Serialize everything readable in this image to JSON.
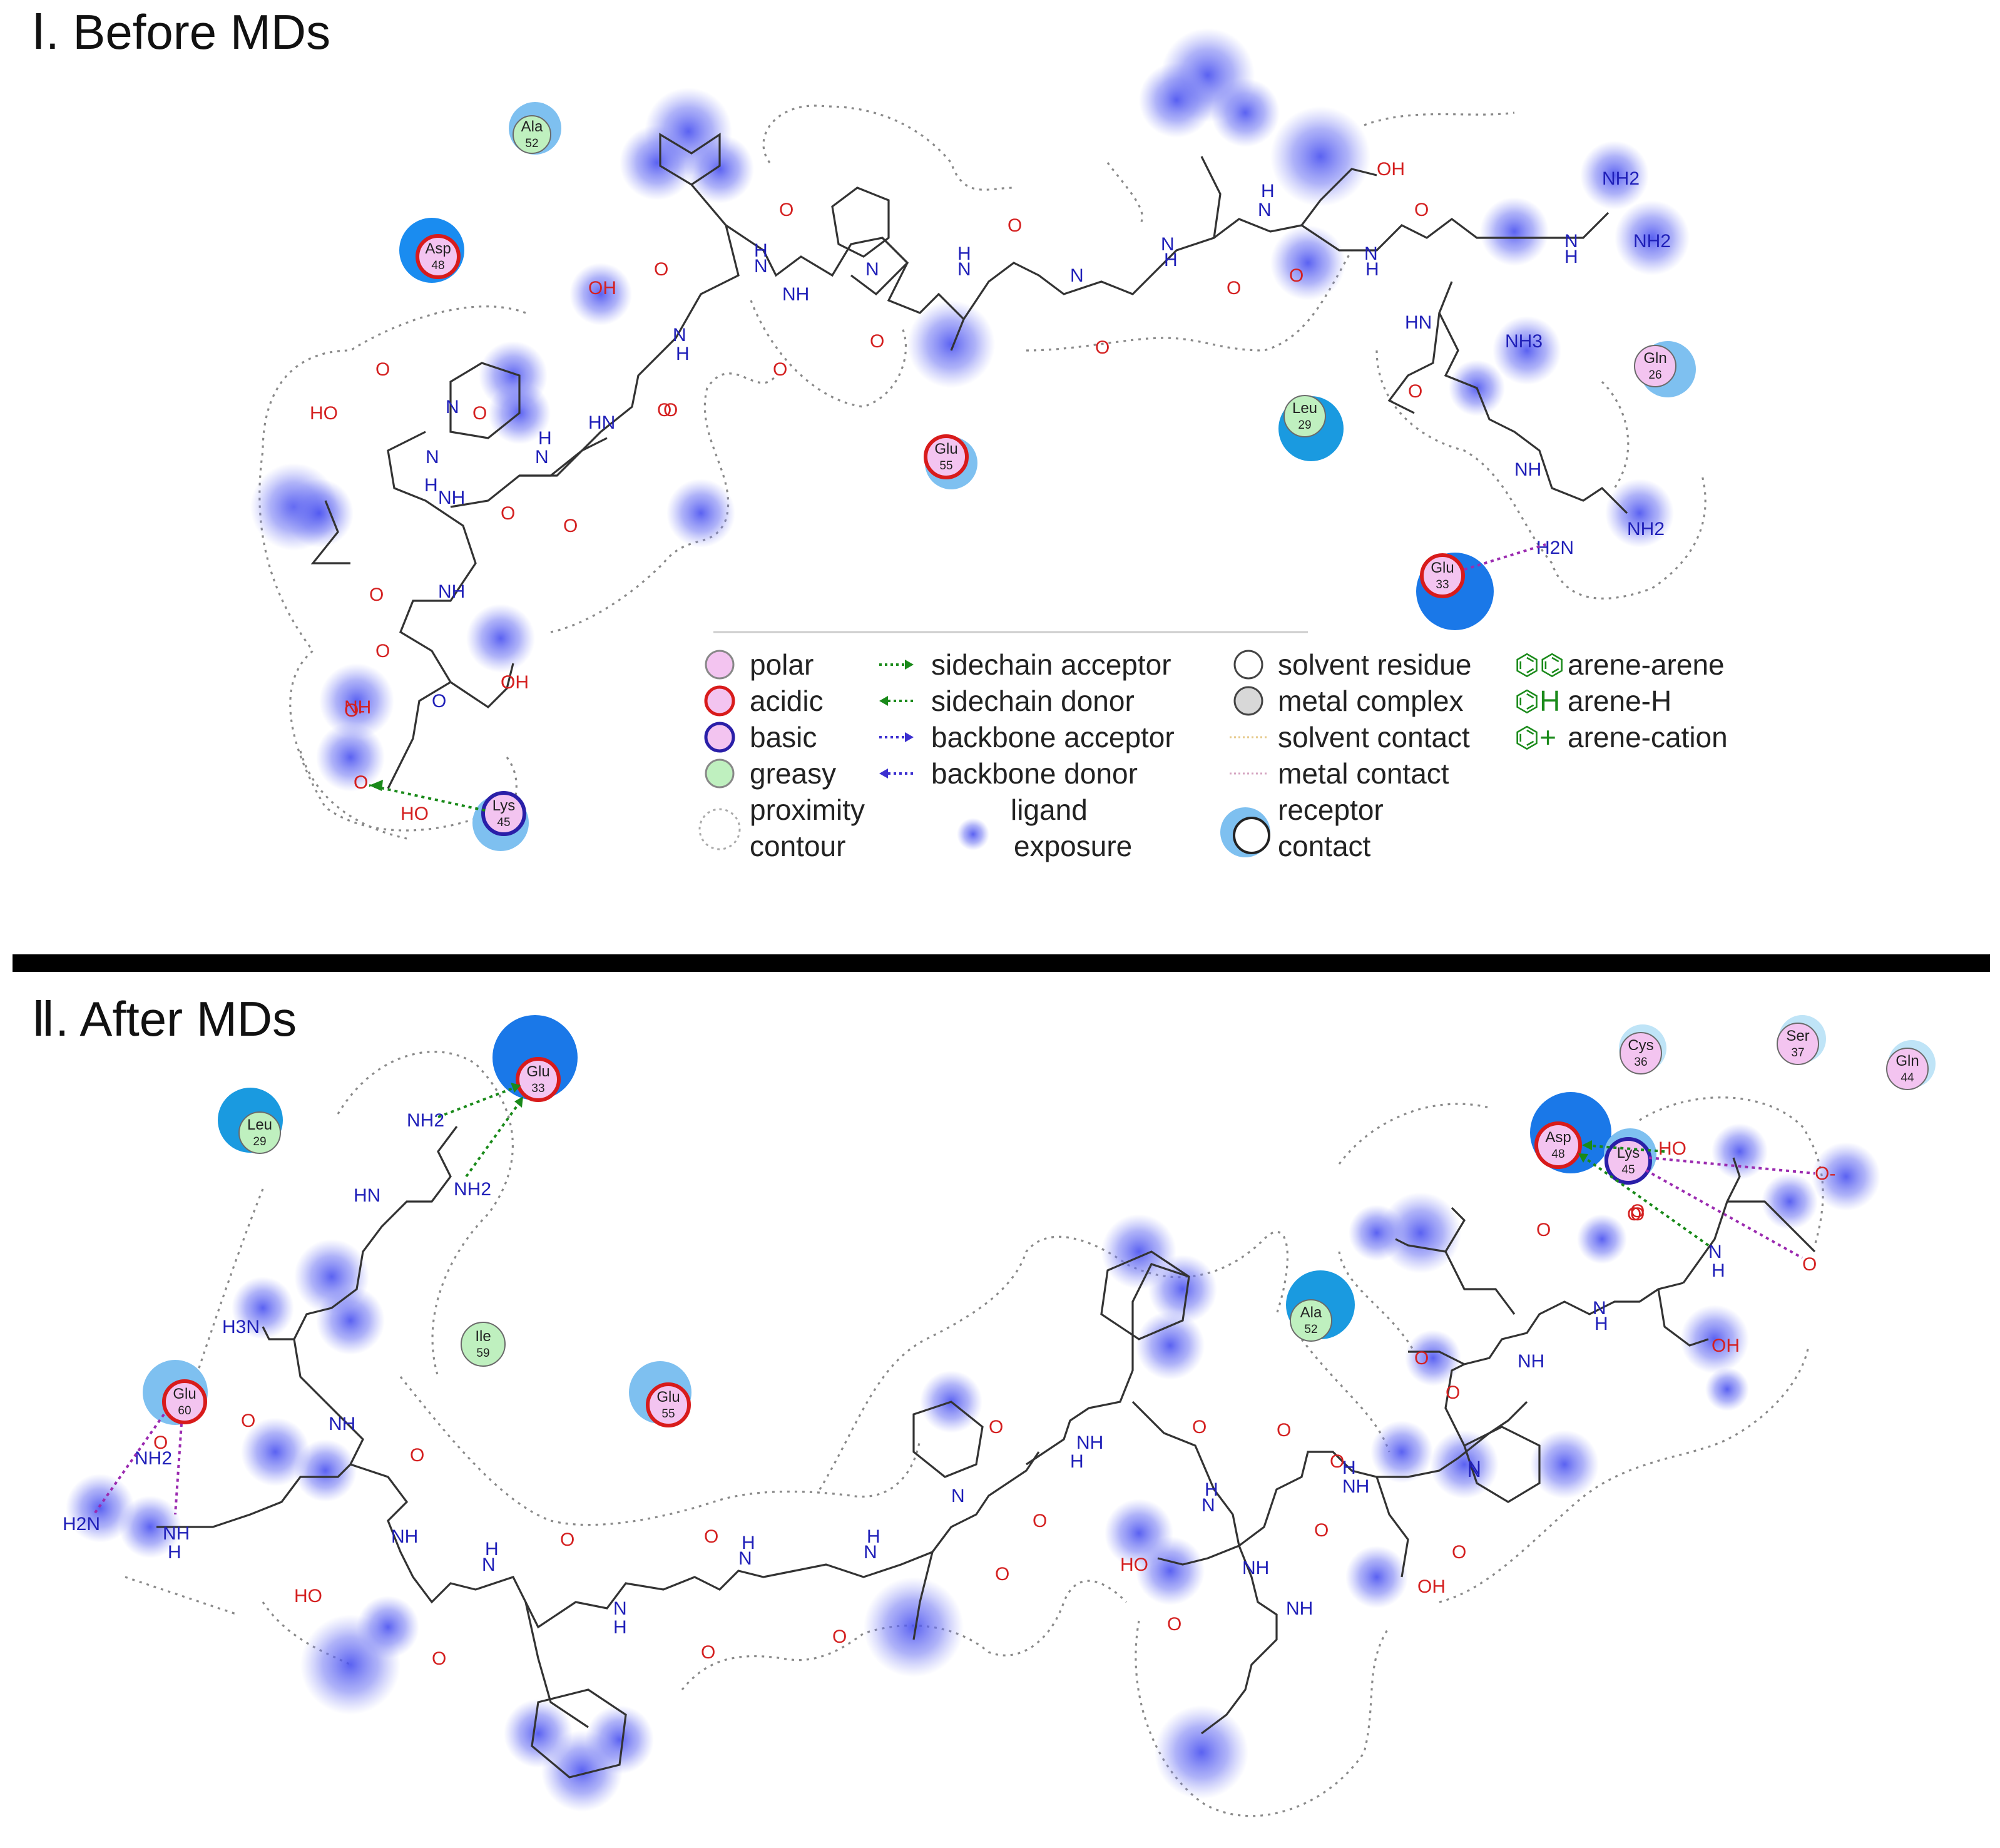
{
  "panels": [
    {
      "title": "Ⅰ. Before MDs"
    },
    {
      "title": "Ⅱ. After MDs"
    }
  ],
  "colors": {
    "polar": "#f3c4f0",
    "acidic": "#d81b1b",
    "basic": "#2a1fa8",
    "greasy": "#bff0bf",
    "receptor_halo": "#2c7fe6",
    "exposure": "#5058f0",
    "bond": "#333333",
    "nitrogen": "#1f1fb8",
    "oxygen": "#d42020",
    "sidechain_hbond": "#1a8a1a",
    "backbone_hbond": "#9b2bb0"
  },
  "legend": {
    "col1": [
      "polar",
      "acidic",
      "basic",
      "greasy",
      "proximity",
      "contour"
    ],
    "col2": [
      "sidechain acceptor",
      "sidechain donor",
      "backbone acceptor",
      "backbone donor",
      "ligand",
      "exposure"
    ],
    "col3": [
      "solvent residue",
      "metal complex",
      "solvent contact",
      "metal contact",
      "receptor",
      "contact"
    ],
    "col4": [
      "arene-arene",
      "arene-H",
      "arene-cation"
    ]
  },
  "residues": {
    "p1": [
      {
        "name": "Ala",
        "num": "52",
        "type": "greasy"
      },
      {
        "name": "Asp",
        "num": "48",
        "type": "acidic"
      },
      {
        "name": "Glu",
        "num": "55",
        "type": "acidic"
      },
      {
        "name": "Leu",
        "num": "29",
        "type": "greasy"
      },
      {
        "name": "Gln",
        "num": "26",
        "type": "polar"
      },
      {
        "name": "Glu",
        "num": "33",
        "type": "acidic"
      },
      {
        "name": "Lys",
        "num": "45",
        "type": "basic"
      }
    ],
    "p2": [
      {
        "name": "Glu",
        "num": "33",
        "type": "acidic"
      },
      {
        "name": "Leu",
        "num": "29",
        "type": "greasy"
      },
      {
        "name": "Ile",
        "num": "59",
        "type": "greasy"
      },
      {
        "name": "Glu",
        "num": "55",
        "type": "acidic"
      },
      {
        "name": "Glu",
        "num": "60",
        "type": "acidic"
      },
      {
        "name": "Ala",
        "num": "52",
        "type": "greasy"
      },
      {
        "name": "Cys",
        "num": "36",
        "type": "polar"
      },
      {
        "name": "Ser",
        "num": "37",
        "type": "polar"
      },
      {
        "name": "Gln",
        "num": "44",
        "type": "polar"
      },
      {
        "name": "Asp",
        "num": "48",
        "type": "acidic"
      },
      {
        "name": "Lys",
        "num": "45",
        "type": "basic"
      }
    ]
  },
  "atoms": {
    "p1": [
      "OH",
      "O",
      "N",
      "O",
      "H",
      "N",
      "NH",
      "O",
      "O",
      "N",
      "H",
      "N",
      "H",
      "O",
      "N",
      "O",
      "O",
      "N",
      "H",
      "N",
      "H",
      "O",
      "OH",
      "O",
      "N",
      "H",
      "O",
      "N",
      "H",
      "NH2",
      "NH2",
      "HN",
      "NH3",
      "O",
      "HO",
      "O",
      "N",
      "O",
      "N",
      "H",
      "N",
      "H",
      "O",
      "HN",
      "O",
      "O",
      "NH",
      "O",
      "NH",
      "O",
      "O",
      "NH",
      "O",
      "O",
      "OH",
      "O-",
      "O",
      "HO",
      "NH",
      "H2N",
      "NH2"
    ],
    "p2": [
      "NH2",
      "NH2",
      "HN",
      "H3N",
      "O",
      "NH",
      "O",
      "NH2",
      "H2N",
      "NH",
      "H",
      "O",
      "NH",
      "HO",
      "O",
      "N",
      "H",
      "O",
      "N",
      "H",
      "O",
      "O",
      "N",
      "H",
      "O",
      "N",
      "H",
      "O",
      "O",
      "N",
      "O",
      "NH",
      "H",
      "O",
      "N",
      "H",
      "O",
      "NH",
      "HO",
      "NH",
      "O",
      "O",
      "NH",
      "O",
      "N",
      "H",
      "O",
      "OH",
      "N",
      "O",
      "O",
      "N",
      "H",
      "O",
      "O",
      "NH",
      "OH",
      "HO",
      "N",
      "H",
      "O-",
      "O",
      "O",
      "O"
    ]
  }
}
